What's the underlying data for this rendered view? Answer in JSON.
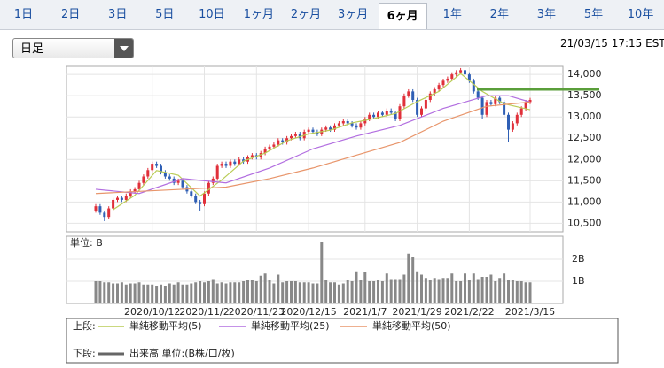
{
  "tabs": [
    "1日",
    "2日",
    "3日",
    "5日",
    "10日",
    "1ヶ月",
    "2ヶ月",
    "3ヶ月",
    "6ヶ月",
    "1年",
    "2年",
    "3年",
    "5年",
    "10年"
  ],
  "selected_tab": 8,
  "dropdown": "日足",
  "timestamp": "21/03/15 17:15 EST",
  "legend": {
    "upper": "上段:",
    "lower": "下段:"
  },
  "chart_data": [
    {
      "type": "candlestick",
      "categories": [
        null,
        null,
        null,
        null,
        null,
        null,
        null,
        null,
        null,
        null,
        null,
        null,
        null,
        "2020/10/12",
        null,
        null,
        null,
        null,
        null,
        null,
        null,
        null,
        null,
        null,
        null,
        "2020/11/2",
        null,
        null,
        null,
        null,
        null,
        null,
        null,
        null,
        null,
        null,
        null,
        "2020/11/23",
        null,
        null,
        null,
        null,
        null,
        null,
        null,
        null,
        null,
        null,
        null,
        "2020/12/15",
        null,
        null,
        null,
        null,
        null,
        null,
        null,
        null,
        null,
        null,
        null,
        null,
        "2021/1/7",
        null,
        null,
        null,
        null,
        null,
        null,
        null,
        null,
        null,
        null,
        null,
        "2021/1/29",
        null,
        null,
        null,
        null,
        null,
        null,
        null,
        null,
        null,
        null,
        null,
        "2021/2/22",
        null,
        null,
        null,
        null,
        null,
        null,
        null,
        null,
        null,
        null,
        null,
        null,
        null,
        "2021/3/15"
      ],
      "open": [
        10800,
        10900,
        10750,
        10650,
        10850,
        11050,
        11100,
        11050,
        11150,
        11250,
        11300,
        11450,
        11600,
        11750,
        11900,
        11850,
        11700,
        11600,
        11550,
        11450,
        11500,
        11350,
        11250,
        11150,
        11000,
        10950,
        11200,
        11450,
        11550,
        11850,
        11900,
        11850,
        11950,
        11900,
        12000,
        11950,
        12050,
        12100,
        12050,
        12150,
        12250,
        12300,
        12350,
        12450,
        12400,
        12500,
        12550,
        12600,
        12500,
        12650,
        12700,
        12650,
        12600,
        12700,
        12750,
        12700,
        12800,
        12850,
        12900,
        12850,
        12800,
        12750,
        12850,
        12950,
        13050,
        13000,
        13100,
        13050,
        13150,
        13100,
        12950,
        13250,
        13500,
        13600,
        13400,
        13050,
        13200,
        13400,
        13550,
        13650,
        13750,
        13850,
        13900,
        14000,
        14050,
        14100,
        14000,
        13850,
        13600,
        13450,
        13050,
        13350,
        13300,
        13450,
        13350,
        13050,
        12700,
        12850,
        13050,
        13200,
        13350
      ],
      "high": [
        10950,
        10950,
        10800,
        10900,
        11100,
        11150,
        11150,
        11200,
        11300,
        11350,
        11500,
        11650,
        11800,
        11950,
        11950,
        11900,
        11750,
        11650,
        11600,
        11550,
        11550,
        11400,
        11300,
        11200,
        11050,
        11250,
        11500,
        11600,
        11900,
        11950,
        11950,
        12000,
        12000,
        12050,
        12050,
        12100,
        12150,
        12150,
        12200,
        12300,
        12350,
        12400,
        12500,
        12500,
        12550,
        12600,
        12650,
        12650,
        12700,
        12750,
        12750,
        12700,
        12750,
        12800,
        12800,
        12850,
        12900,
        12950,
        12950,
        12900,
        12850,
        12900,
        13000,
        13100,
        13100,
        13150,
        13150,
        13200,
        13200,
        13150,
        13300,
        13550,
        13650,
        13650,
        13450,
        13250,
        13450,
        13600,
        13700,
        13800,
        13900,
        13950,
        14050,
        14100,
        14150,
        14150,
        14050,
        13900,
        13650,
        13500,
        13400,
        13400,
        13500,
        13500,
        13400,
        13100,
        12900,
        13100,
        13250,
        13400,
        13450
      ],
      "low": [
        10750,
        10700,
        10550,
        10600,
        10800,
        11000,
        11000,
        11000,
        11100,
        11200,
        11250,
        11400,
        11550,
        11700,
        11800,
        11650,
        11550,
        11500,
        11400,
        11400,
        11300,
        11200,
        11100,
        10950,
        10800,
        10900,
        11150,
        11400,
        11500,
        11800,
        11800,
        11800,
        11850,
        11850,
        11900,
        11900,
        12000,
        12000,
        12000,
        12100,
        12200,
        12250,
        12300,
        12350,
        12350,
        12450,
        12500,
        12450,
        12450,
        12600,
        12600,
        12550,
        12550,
        12650,
        12650,
        12650,
        12750,
        12800,
        12800,
        12750,
        12700,
        12700,
        12800,
        12900,
        12950,
        12950,
        13000,
        13000,
        13050,
        12900,
        12900,
        13200,
        13450,
        13350,
        13000,
        13000,
        13150,
        13350,
        13500,
        13600,
        13700,
        13800,
        13850,
        13950,
        14000,
        13950,
        13800,
        13550,
        13400,
        12950,
        13000,
        13250,
        13250,
        13300,
        13000,
        12400,
        12650,
        12800,
        13000,
        13150,
        13300
      ],
      "close": [
        10900,
        10750,
        10650,
        10850,
        11050,
        11100,
        11050,
        11150,
        11250,
        11300,
        11450,
        11600,
        11750,
        11900,
        11850,
        11700,
        11600,
        11550,
        11450,
        11500,
        11350,
        11250,
        11150,
        11000,
        10950,
        11200,
        11450,
        11550,
        11850,
        11900,
        11850,
        11950,
        11900,
        12000,
        11950,
        12050,
        12100,
        12050,
        12150,
        12250,
        12300,
        12350,
        12450,
        12400,
        12500,
        12550,
        12600,
        12500,
        12650,
        12700,
        12650,
        12600,
        12700,
        12750,
        12700,
        12800,
        12850,
        12900,
        12850,
        12800,
        12750,
        12850,
        12950,
        13050,
        13000,
        13100,
        13050,
        13150,
        13100,
        12950,
        13250,
        13500,
        13600,
        13400,
        13050,
        13200,
        13400,
        13550,
        13650,
        13750,
        13850,
        13900,
        14000,
        14050,
        14100,
        14000,
        13850,
        13600,
        13450,
        13050,
        13350,
        13300,
        13450,
        13350,
        13050,
        12700,
        12850,
        13050,
        13200,
        13350,
        13400
      ],
      "up_color": "#e0303a",
      "down_color": "#2f5fb5",
      "series": [
        {
          "name": "単純移動平均(5)",
          "color": "#b9cc55",
          "x": [
            4,
            9,
            14,
            19,
            24,
            29,
            34,
            39,
            44,
            49,
            54,
            59,
            64,
            69,
            74,
            79,
            84,
            89,
            94,
            100
          ],
          "values": [
            10820,
            11160,
            11740,
            11630,
            11140,
            11520,
            11960,
            12150,
            12440,
            12600,
            12690,
            12860,
            12960,
            13080,
            13360,
            13600,
            14020,
            13600,
            13310,
            13170
          ]
        },
        {
          "name": "単純移動平均(25)",
          "color": "#b26ee0",
          "x": [
            0,
            10,
            20,
            30,
            40,
            50,
            60,
            70,
            80,
            90,
            95,
            100
          ],
          "values": [
            11300,
            11200,
            11550,
            11450,
            11800,
            12250,
            12550,
            12800,
            13200,
            13500,
            13500,
            13350
          ]
        },
        {
          "name": "単純移動平均(50)",
          "color": "#e8956b",
          "x": [
            0,
            10,
            20,
            30,
            40,
            50,
            60,
            70,
            80,
            90,
            100
          ],
          "values": [
            11200,
            11250,
            11300,
            11350,
            11550,
            11800,
            12100,
            12400,
            12900,
            13250,
            13350
          ]
        }
      ],
      "reference_line": 13650,
      "reference_color": "#5a9e3a",
      "ylim": [
        10300,
        14190
      ],
      "yticks": [
        {
          "value": 10500,
          "label": "10,500"
        },
        {
          "value": 11000,
          "label": "11,000"
        },
        {
          "value": 11500,
          "label": "11,500"
        },
        {
          "value": 12000,
          "label": "12,000"
        },
        {
          "value": 12500,
          "label": "12,500"
        },
        {
          "value": 13000,
          "label": "13,000"
        },
        {
          "value": 13500,
          "label": "13,500"
        },
        {
          "value": 14000,
          "label": "14,000"
        }
      ],
      "grid": true
    },
    {
      "type": "bar",
      "unit_label": "単位: B",
      "series": [
        {
          "name": "出来高 単位:(B株/口/枚)",
          "color": "#888888",
          "values": [
            1.0,
            1.0,
            0.95,
            0.95,
            0.9,
            0.9,
            0.95,
            0.85,
            0.9,
            0.9,
            0.95,
            0.85,
            0.85,
            0.85,
            0.8,
            0.85,
            0.8,
            0.9,
            0.85,
            0.95,
            0.85,
            0.85,
            0.9,
            0.95,
            1.0,
            0.95,
            1.0,
            1.1,
            0.9,
            0.95,
            0.9,
            0.95,
            0.95,
            0.95,
            1.0,
            1.05,
            1.05,
            1.0,
            1.25,
            1.35,
            1.05,
            0.9,
            1.3,
            0.95,
            1.0,
            1.0,
            1.0,
            0.95,
            0.95,
            0.95,
            0.9,
            0.9,
            2.8,
            1.05,
            0.95,
            0.95,
            0.85,
            0.9,
            1.05,
            1.0,
            1.45,
            1.05,
            1.4,
            1.0,
            1.0,
            1.05,
            1.0,
            1.35,
            1.1,
            1.1,
            1.1,
            1.3,
            2.25,
            2.1,
            1.45,
            1.3,
            1.15,
            1.05,
            1.15,
            1.1,
            1.15,
            1.15,
            1.35,
            1.0,
            1.0,
            1.35,
            1.05,
            1.35,
            1.1,
            1.2,
            1.2,
            1.3,
            1.0,
            1.15,
            1.35,
            1.05,
            1.05,
            1.0,
            1.0,
            0.95,
            0.95
          ]
        }
      ],
      "ylim": [
        0,
        3
      ],
      "yticks": [
        {
          "value": 1,
          "label": "1B"
        },
        {
          "value": 2,
          "label": "2B"
        }
      ],
      "grid": true
    }
  ]
}
